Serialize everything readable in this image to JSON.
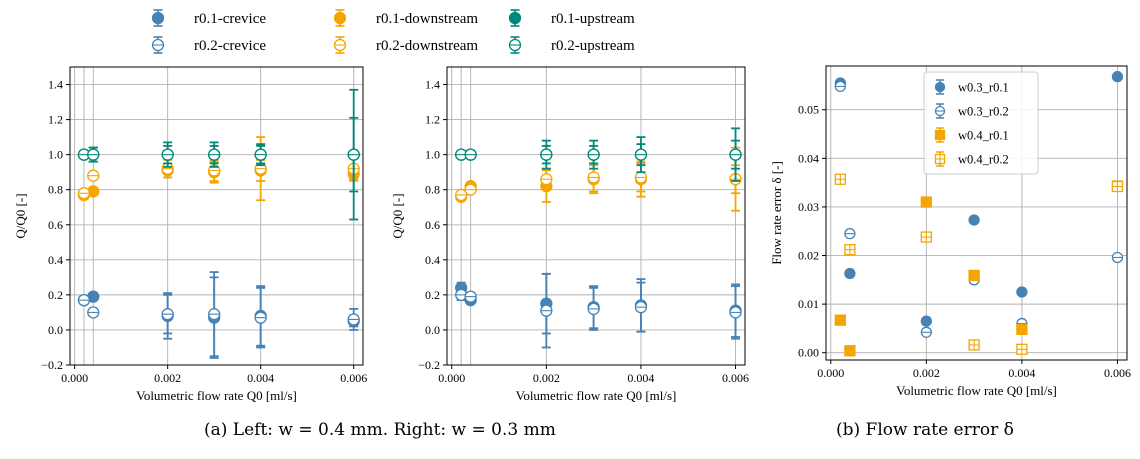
{
  "colors": {
    "crevice": "#4682b4",
    "downstream": "#f5a500",
    "upstream": "#00897b",
    "w03": "#4682b4",
    "w04": "#f5a500"
  },
  "legend_top": [
    {
      "label": "r0.1-crevice",
      "color": "#4682b4",
      "filled": true
    },
    {
      "label": "r0.2-crevice",
      "color": "#4682b4",
      "filled": false
    },
    {
      "label": "r0.1-downstream",
      "color": "#f5a500",
      "filled": true
    },
    {
      "label": "r0.2-downstream",
      "color": "#f5a500",
      "filled": false
    },
    {
      "label": "r0.1-upstream",
      "color": "#00897b",
      "filled": true
    },
    {
      "label": "r0.2-upstream",
      "color": "#00897b",
      "filled": false
    }
  ],
  "captions": {
    "a": "(a) Left: w = 0.4 mm. Right: w = 0.3 mm",
    "b": "(b) Flow rate error δ"
  },
  "chart_data": [
    {
      "type": "scatter",
      "panel": "left",
      "xlabel": "Volumetric flow rate Q0 [ml/s]",
      "ylabel": "Q/Q0 [-]",
      "xlim": [
        -0.0001,
        0.0062
      ],
      "ylim": [
        -0.2,
        1.5
      ],
      "xticks": [
        "0.000",
        "0.002",
        "0.004",
        "0.006"
      ],
      "yticks": [
        "−0.2",
        "0.0",
        "0.2",
        "0.4",
        "0.6",
        "0.8",
        "1.0",
        "1.2",
        "1.4"
      ],
      "extra_vlines": [
        0.0002,
        0.0004
      ],
      "series": [
        {
          "name": "r0.1-crevice",
          "color": "#4682b4",
          "filled": true,
          "marker": "circle",
          "points": [
            [
              0.0002,
              0.17,
              0.02
            ],
            [
              0.0004,
              0.19,
              0.02
            ],
            [
              0.002,
              0.08,
              0.13
            ],
            [
              0.003,
              0.07,
              0.23
            ],
            [
              0.004,
              0.08,
              0.17
            ],
            [
              0.006,
              0.05,
              0.03
            ]
          ]
        },
        {
          "name": "r0.2-crevice",
          "color": "#4682b4",
          "filled": false,
          "marker": "circle",
          "points": [
            [
              0.0002,
              0.17,
              0.02
            ],
            [
              0.0004,
              0.1,
              0.02
            ],
            [
              0.002,
              0.09,
              0.11
            ],
            [
              0.003,
              0.09,
              0.24
            ],
            [
              0.004,
              0.07,
              0.17
            ],
            [
              0.006,
              0.06,
              0.06
            ]
          ]
        },
        {
          "name": "r0.1-downstream",
          "color": "#f5a500",
          "filled": true,
          "marker": "circle",
          "points": [
            [
              0.0002,
              0.77,
              0.02
            ],
            [
              0.0004,
              0.79,
              0.02
            ],
            [
              0.002,
              0.91,
              0.04
            ],
            [
              0.003,
              0.9,
              0.06
            ],
            [
              0.004,
              0.91,
              0.06
            ],
            [
              0.006,
              0.89,
              0.04
            ]
          ]
        },
        {
          "name": "r0.2-downstream",
          "color": "#f5a500",
          "filled": false,
          "marker": "circle",
          "points": [
            [
              0.0002,
              0.78,
              0.02
            ],
            [
              0.0004,
              0.88,
              0.02
            ],
            [
              0.002,
              0.92,
              0.05
            ],
            [
              0.003,
              0.91,
              0.06
            ],
            [
              0.004,
              0.92,
              0.18
            ],
            [
              0.006,
              0.92,
              0.06
            ]
          ]
        },
        {
          "name": "r0.1-upstream",
          "color": "#00897b",
          "filled": true,
          "marker": "circle",
          "points": [
            [
              0.0002,
              1.0,
              0.02
            ],
            [
              0.0004,
              1.0,
              0.04
            ],
            [
              0.002,
              1.0,
              0.07
            ],
            [
              0.003,
              1.0,
              0.07
            ],
            [
              0.004,
              1.0,
              0.06
            ],
            [
              0.006,
              1.0,
              0.37
            ]
          ]
        },
        {
          "name": "r0.2-upstream",
          "color": "#00897b",
          "filled": false,
          "marker": "circle",
          "points": [
            [
              0.0002,
              1.0,
              0.02
            ],
            [
              0.0004,
              1.0,
              0.04
            ],
            [
              0.002,
              1.0,
              0.05
            ],
            [
              0.003,
              1.0,
              0.05
            ],
            [
              0.004,
              1.0,
              0.05
            ],
            [
              0.006,
              1.0,
              0.21
            ]
          ]
        }
      ]
    },
    {
      "type": "scatter",
      "panel": "middle",
      "xlabel": "Volumetric flow rate Q0 [ml/s]",
      "ylabel": "Q/Q0 [-]",
      "xlim": [
        -0.0001,
        0.0062
      ],
      "ylim": [
        -0.2,
        1.5
      ],
      "xticks": [
        "0.000",
        "0.002",
        "0.004",
        "0.006"
      ],
      "yticks": [
        "−0.2",
        "0.0",
        "0.2",
        "0.4",
        "0.6",
        "0.8",
        "1.0",
        "1.2",
        "1.4"
      ],
      "extra_vlines": [
        0.0002,
        0.0004
      ],
      "series": [
        {
          "name": "r0.1-crevice",
          "color": "#4682b4",
          "filled": true,
          "marker": "circle",
          "points": [
            [
              0.0002,
              0.24,
              0.03
            ],
            [
              0.0004,
              0.17,
              0.02
            ],
            [
              0.002,
              0.15,
              0.17
            ],
            [
              0.003,
              0.13,
              0.12
            ],
            [
              0.004,
              0.14,
              0.15
            ],
            [
              0.006,
              0.11,
              0.15
            ]
          ]
        },
        {
          "name": "r0.2-crevice",
          "color": "#4682b4",
          "filled": false,
          "marker": "circle",
          "points": [
            [
              0.0002,
              0.2,
              0.03
            ],
            [
              0.0004,
              0.19,
              0.02
            ],
            [
              0.002,
              0.11,
              0.21
            ],
            [
              0.003,
              0.12,
              0.12
            ],
            [
              0.004,
              0.13,
              0.14
            ],
            [
              0.006,
              0.1,
              0.15
            ]
          ]
        },
        {
          "name": "r0.1-downstream",
          "color": "#f5a500",
          "filled": true,
          "marker": "circle",
          "points": [
            [
              0.0002,
              0.76,
              0.02
            ],
            [
              0.0004,
              0.82,
              0.02
            ],
            [
              0.002,
              0.82,
              0.09
            ],
            [
              0.003,
              0.86,
              0.08
            ],
            [
              0.004,
              0.86,
              0.1
            ],
            [
              0.006,
              0.86,
              0.18
            ]
          ]
        },
        {
          "name": "r0.2-downstream",
          "color": "#f5a500",
          "filled": false,
          "marker": "circle",
          "points": [
            [
              0.0002,
              0.77,
              0.02
            ],
            [
              0.0004,
              0.8,
              0.02
            ],
            [
              0.002,
              0.86,
              0.06
            ],
            [
              0.003,
              0.87,
              0.08
            ],
            [
              0.004,
              0.87,
              0.08
            ],
            [
              0.006,
              0.86,
              0.08
            ]
          ]
        },
        {
          "name": "r0.1-upstream",
          "color": "#00897b",
          "filled": true,
          "marker": "circle",
          "points": [
            [
              0.0002,
              1.0,
              0.02
            ],
            [
              0.0004,
              1.0,
              0.02
            ],
            [
              0.002,
              1.0,
              0.08
            ],
            [
              0.003,
              1.0,
              0.08
            ],
            [
              0.004,
              1.0,
              0.1
            ],
            [
              0.006,
              1.0,
              0.15
            ]
          ]
        },
        {
          "name": "r0.2-upstream",
          "color": "#00897b",
          "filled": false,
          "marker": "circle",
          "points": [
            [
              0.0002,
              1.0,
              0.02
            ],
            [
              0.0004,
              1.0,
              0.02
            ],
            [
              0.002,
              1.0,
              0.05
            ],
            [
              0.003,
              1.0,
              0.05
            ],
            [
              0.004,
              1.0,
              0.06
            ],
            [
              0.006,
              1.0,
              0.08
            ]
          ]
        }
      ]
    },
    {
      "type": "scatter",
      "panel": "right",
      "xlabel": "Volumetric flow rate Q0 [ml/s]",
      "ylabel": "Flow rate error δ [-]",
      "xlim": [
        -0.0001,
        0.0062
      ],
      "ylim": [
        -0.0015,
        0.059
      ],
      "xticks": [
        "0.000",
        "0.002",
        "0.004",
        "0.006"
      ],
      "yticks": [
        "0.00",
        "0.01",
        "0.02",
        "0.03",
        "0.04",
        "0.05"
      ],
      "legend_position": "upper-center",
      "series": [
        {
          "name": "w0.3_r0.1",
          "color": "#4682b4",
          "filled": true,
          "marker": "circle",
          "points": [
            [
              0.0002,
              0.0555,
              0
            ],
            [
              0.0004,
              0.0163,
              0
            ],
            [
              0.002,
              0.0065,
              0
            ],
            [
              0.003,
              0.0273,
              0
            ],
            [
              0.004,
              0.0125,
              0
            ],
            [
              0.006,
              0.0568,
              0
            ]
          ]
        },
        {
          "name": "w0.3_r0.2",
          "color": "#4682b4",
          "filled": false,
          "marker": "circle",
          "points": [
            [
              0.0002,
              0.0548,
              0
            ],
            [
              0.0004,
              0.0245,
              0
            ],
            [
              0.002,
              0.0042,
              0
            ],
            [
              0.003,
              0.015,
              0
            ],
            [
              0.004,
              0.006,
              0
            ],
            [
              0.006,
              0.0196,
              0
            ]
          ]
        },
        {
          "name": "w0.4_r0.1",
          "color": "#f5a500",
          "filled": true,
          "marker": "square",
          "points": [
            [
              0.0002,
              0.0067,
              0
            ],
            [
              0.0004,
              0.0004,
              0
            ],
            [
              0.002,
              0.031,
              0
            ],
            [
              0.003,
              0.0159,
              0
            ],
            [
              0.004,
              0.0048,
              0
            ],
            [
              0.006,
              0.0343,
              0
            ]
          ]
        },
        {
          "name": "w0.4_r0.2",
          "color": "#f5a500",
          "filled": false,
          "marker": "square",
          "points": [
            [
              0.0002,
              0.0357,
              0
            ],
            [
              0.0004,
              0.0212,
              0
            ],
            [
              0.002,
              0.0238,
              0
            ],
            [
              0.003,
              0.0016,
              0
            ],
            [
              0.004,
              0.0007,
              0
            ],
            [
              0.006,
              0.0342,
              0
            ]
          ]
        }
      ]
    }
  ]
}
